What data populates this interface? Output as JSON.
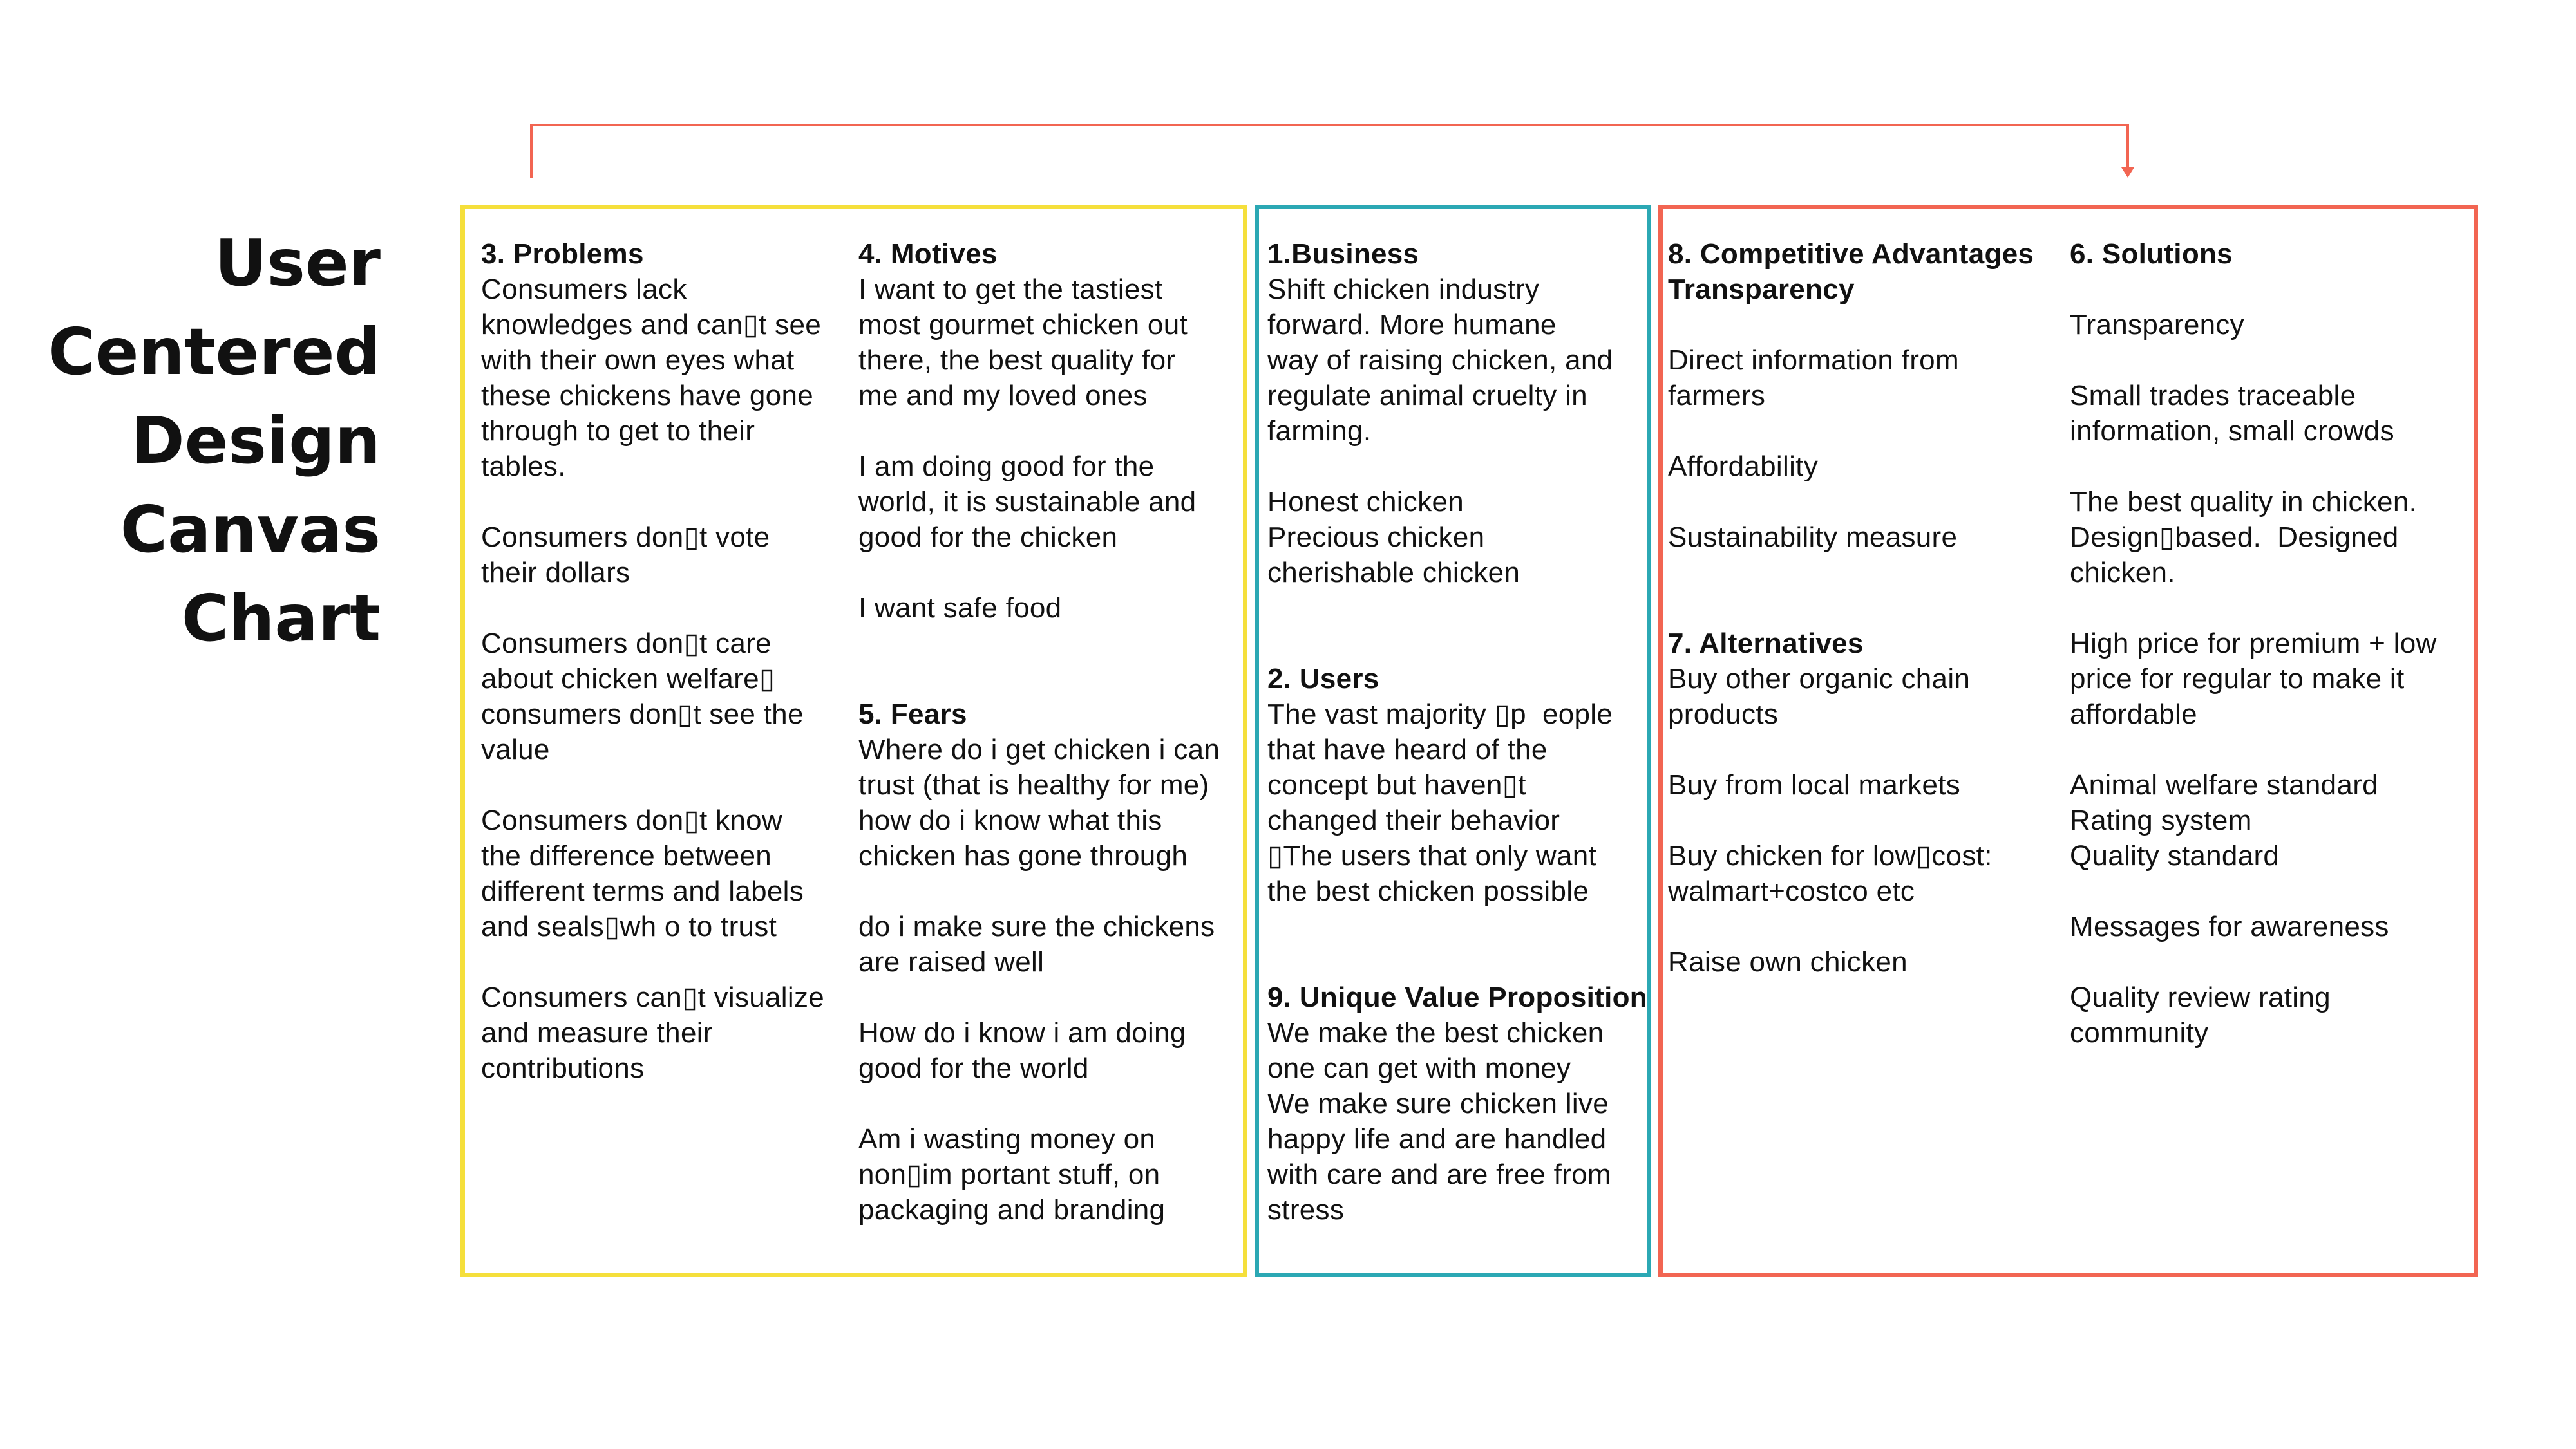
{
  "title_lines": [
    "User",
    "Centered",
    "Design",
    "Canvas",
    "Chart"
  ],
  "colors": {
    "problems_motives_fears": "#F5DF3B",
    "business_users_uvp": "#2BA8B4",
    "advantages_alternatives_solutions": "#F26552",
    "arrow": "#F26552"
  },
  "arrow": {
    "from": "problems",
    "to": "solutions"
  },
  "columns": [
    {
      "id": "problems",
      "lines": [
        {
          "t": "3. Problems",
          "b": true
        },
        {
          "t": "Consumers lack"
        },
        {
          "t": "knowledges and can▯t see"
        },
        {
          "t": "with their own eyes what"
        },
        {
          "t": "these chickens have gone"
        },
        {
          "t": "through to get to their"
        },
        {
          "t": "tables."
        },
        {
          "t": ""
        },
        {
          "t": "Consumers don▯t vote"
        },
        {
          "t": "their dollars"
        },
        {
          "t": ""
        },
        {
          "t": "Consumers don▯t care"
        },
        {
          "t": "about chicken welfare▯"
        },
        {
          "t": "consumers don▯t see the"
        },
        {
          "t": "value"
        },
        {
          "t": ""
        },
        {
          "t": "Consumers don▯t know"
        },
        {
          "t": "the difference between"
        },
        {
          "t": "different terms and labels"
        },
        {
          "t": "and seals▯wh o to trust"
        },
        {
          "t": ""
        },
        {
          "t": "Consumers can▯t visualize"
        },
        {
          "t": "and measure their"
        },
        {
          "t": "contributions"
        }
      ]
    },
    {
      "id": "motives-fears",
      "lines": [
        {
          "t": "4. Motives",
          "b": true
        },
        {
          "t": "I want to get the tastiest"
        },
        {
          "t": "most gourmet chicken out"
        },
        {
          "t": "there, the best quality for"
        },
        {
          "t": "me and my loved ones"
        },
        {
          "t": ""
        },
        {
          "t": "I am doing good for the"
        },
        {
          "t": "world, it is sustainable and"
        },
        {
          "t": "good for the chicken"
        },
        {
          "t": ""
        },
        {
          "t": "I want safe food"
        },
        {
          "t": ""
        },
        {
          "t": ""
        },
        {
          "t": "5. Fears",
          "b": true
        },
        {
          "t": "Where do i get chicken i can"
        },
        {
          "t": "trust (that is healthy for me)"
        },
        {
          "t": "how do i know what this"
        },
        {
          "t": "chicken has gone through"
        },
        {
          "t": ""
        },
        {
          "t": "do i make sure the chickens"
        },
        {
          "t": "are raised well"
        },
        {
          "t": ""
        },
        {
          "t": "How do i know i am doing"
        },
        {
          "t": "good for the world"
        },
        {
          "t": ""
        },
        {
          "t": "Am i wasting money on"
        },
        {
          "t": "non▯im portant stuff, on"
        },
        {
          "t": "packaging and branding"
        }
      ]
    },
    {
      "id": "business-users-uvp",
      "lines": [
        {
          "t": "1.Business",
          "b": true
        },
        {
          "t": "Shift chicken industry"
        },
        {
          "t": "forward. More humane"
        },
        {
          "t": "way of raising chicken, and"
        },
        {
          "t": "regulate animal cruelty in"
        },
        {
          "t": "farming."
        },
        {
          "t": ""
        },
        {
          "t": "Honest chicken"
        },
        {
          "t": "Precious chicken"
        },
        {
          "t": "cherishable chicken"
        },
        {
          "t": ""
        },
        {
          "t": ""
        },
        {
          "t": "2. Users",
          "b": true
        },
        {
          "t": "The vast majority ▯p  eople"
        },
        {
          "t": "that have heard of the"
        },
        {
          "t": "concept but haven▯t"
        },
        {
          "t": "changed their behavior"
        },
        {
          "t": "▯The users that only want"
        },
        {
          "t": "the best chicken possible"
        },
        {
          "t": ""
        },
        {
          "t": ""
        },
        {
          "t": "9. Unique Value Proposition",
          "b": true
        },
        {
          "t": "We make the best chicken"
        },
        {
          "t": "one can get with money"
        },
        {
          "t": "We make sure chicken live"
        },
        {
          "t": "happy life and are handled"
        },
        {
          "t": "with care and are free from"
        },
        {
          "t": "stress"
        }
      ]
    },
    {
      "id": "advantages-alternatives",
      "lines": [
        {
          "t": "8. Competitive Advantages",
          "b": true
        },
        {
          "t": "Transparency",
          "b": true
        },
        {
          "t": ""
        },
        {
          "t": "Direct information from"
        },
        {
          "t": "farmers"
        },
        {
          "t": ""
        },
        {
          "t": "Affordability"
        },
        {
          "t": ""
        },
        {
          "t": "Sustainability measure"
        },
        {
          "t": ""
        },
        {
          "t": ""
        },
        {
          "t": "7. Alternatives",
          "b": true
        },
        {
          "t": "Buy other organic chain"
        },
        {
          "t": "products"
        },
        {
          "t": ""
        },
        {
          "t": "Buy from local markets"
        },
        {
          "t": ""
        },
        {
          "t": "Buy chicken for low▯cost:"
        },
        {
          "t": "walmart+costco etc"
        },
        {
          "t": ""
        },
        {
          "t": "Raise own chicken"
        }
      ]
    },
    {
      "id": "solutions",
      "lines": [
        {
          "t": "6. Solutions",
          "b": true
        },
        {
          "t": ""
        },
        {
          "t": "Transparency"
        },
        {
          "t": ""
        },
        {
          "t": "Small trades traceable"
        },
        {
          "t": "information, small crowds"
        },
        {
          "t": ""
        },
        {
          "t": "The best quality in chicken."
        },
        {
          "t": "Design▯based.  Designed"
        },
        {
          "t": "chicken."
        },
        {
          "t": ""
        },
        {
          "t": "High price for premium + low"
        },
        {
          "t": "price for regular to make it"
        },
        {
          "t": "affordable"
        },
        {
          "t": ""
        },
        {
          "t": "Animal welfare standard"
        },
        {
          "t": "Rating system"
        },
        {
          "t": "Quality standard"
        },
        {
          "t": ""
        },
        {
          "t": "Messages for awareness"
        },
        {
          "t": ""
        },
        {
          "t": "Quality review rating"
        },
        {
          "t": "community"
        }
      ]
    }
  ]
}
